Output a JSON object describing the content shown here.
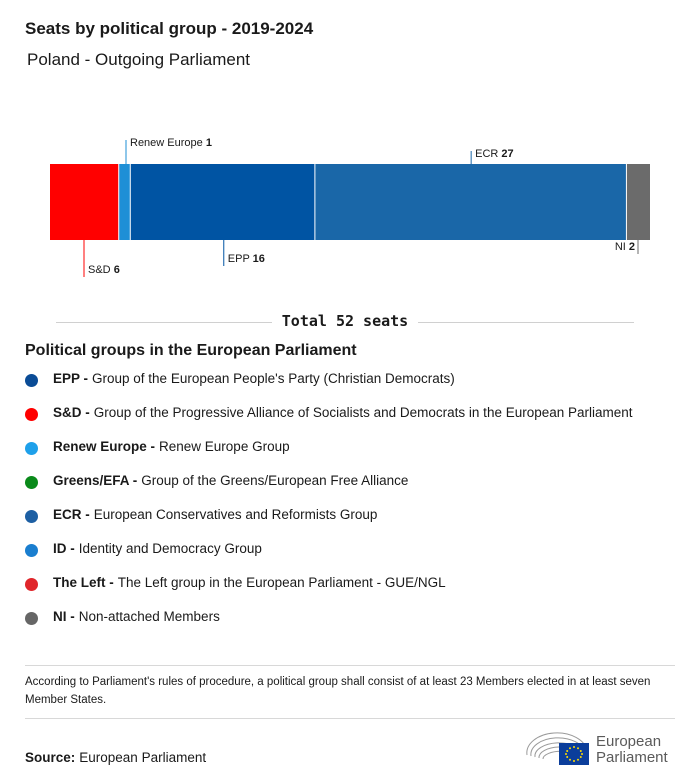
{
  "title": "Seats by political group - 2019-2024",
  "subtitle": "Poland - Outgoing Parliament",
  "chart_data": {
    "type": "bar",
    "orientation": "horizontal-stacked",
    "total": 52,
    "segments": [
      {
        "abbr": "S&D",
        "seats": 6,
        "color": "#ff0000",
        "label_side": "bottom"
      },
      {
        "abbr": "Renew Europe",
        "seats": 1,
        "color": "#1e8fd6",
        "label_side": "top"
      },
      {
        "abbr": "EPP",
        "seats": 16,
        "color": "#0054a3",
        "label_side": "bottom"
      },
      {
        "abbr": "ECR",
        "seats": 27,
        "color": "#1a67a8",
        "label_side": "top"
      },
      {
        "abbr": "NI",
        "seats": 2,
        "color": "#6b6b6b",
        "label_side": "bottom"
      }
    ],
    "total_label": "Total 52 seats"
  },
  "legend": {
    "title": "Political groups in the European Parliament",
    "items": [
      {
        "abbr": "EPP -",
        "name": "Group of the European People's Party (Christian Democrats)",
        "color": "#0a4c96"
      },
      {
        "abbr": "S&D -",
        "name": "Group of the Progressive Alliance of Socialists and Democrats in the European Parliament",
        "color": "#ff0000"
      },
      {
        "abbr": "Renew Europe -",
        "name": "Renew Europe Group",
        "color": "#1ea0ea"
      },
      {
        "abbr": "Greens/EFA -",
        "name": "Group of the Greens/European Free Alliance",
        "color": "#0a8a1a"
      },
      {
        "abbr": "ECR -",
        "name": "European Conservatives and Reformists Group",
        "color": "#1d5fa3"
      },
      {
        "abbr": "ID -",
        "name": "Identity and Democracy Group",
        "color": "#1a7ecf"
      },
      {
        "abbr": "The Left -",
        "name": "The Left group in the European Parliament - GUE/NGL",
        "color": "#e0262b"
      },
      {
        "abbr": "NI -",
        "name": "Non-attached Members",
        "color": "#666666"
      }
    ]
  },
  "note": "According to Parliament's rules of procedure, a political group shall consist of at least 23 Members elected in at least seven Member States.",
  "source": {
    "label": "Source:",
    "value": "European Parliament"
  },
  "logo": {
    "line1": "European",
    "line2": "Parliament"
  }
}
